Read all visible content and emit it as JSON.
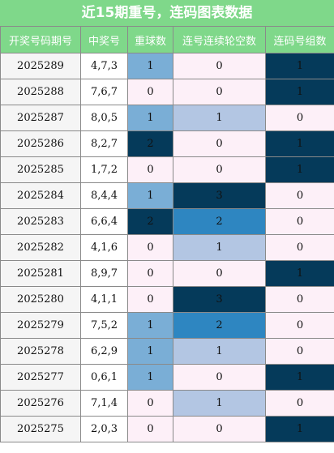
{
  "title": "近15期重号，连码图表数据",
  "columns": [
    "开奖号码期号",
    "中奖号",
    "重球数",
    "连号连续轮空数",
    "连码号组数"
  ],
  "rows": [
    {
      "issue": "2025289",
      "nums": "4,7,3",
      "repeat": "1",
      "gap": "0",
      "groups": "1"
    },
    {
      "issue": "2025288",
      "nums": "7,6,7",
      "repeat": "0",
      "gap": "0",
      "groups": "1"
    },
    {
      "issue": "2025287",
      "nums": "8,0,5",
      "repeat": "1",
      "gap": "1",
      "groups": "0"
    },
    {
      "issue": "2025286",
      "nums": "8,2,7",
      "repeat": "2",
      "gap": "0",
      "groups": "1"
    },
    {
      "issue": "2025285",
      "nums": "1,7,2",
      "repeat": "0",
      "gap": "0",
      "groups": "1"
    },
    {
      "issue": "2025284",
      "nums": "8,4,4",
      "repeat": "1",
      "gap": "3",
      "groups": "0"
    },
    {
      "issue": "2025283",
      "nums": "6,6,4",
      "repeat": "2",
      "gap": "2",
      "groups": "0"
    },
    {
      "issue": "2025282",
      "nums": "4,1,6",
      "repeat": "0",
      "gap": "1",
      "groups": "0"
    },
    {
      "issue": "2025281",
      "nums": "8,9,7",
      "repeat": "0",
      "gap": "0",
      "groups": "1"
    },
    {
      "issue": "2025280",
      "nums": "4,1,1",
      "repeat": "0",
      "gap": "3",
      "groups": "0"
    },
    {
      "issue": "2025279",
      "nums": "7,5,2",
      "repeat": "1",
      "gap": "2",
      "groups": "0"
    },
    {
      "issue": "2025278",
      "nums": "6,2,9",
      "repeat": "1",
      "gap": "1",
      "groups": "0"
    },
    {
      "issue": "2025277",
      "nums": "0,6,1",
      "repeat": "1",
      "gap": "0",
      "groups": "1"
    },
    {
      "issue": "2025276",
      "nums": "7,1,4",
      "repeat": "0",
      "gap": "1",
      "groups": "0"
    },
    {
      "issue": "2025275",
      "nums": "2,0,3",
      "repeat": "0",
      "gap": "0",
      "groups": "1"
    }
  ]
}
